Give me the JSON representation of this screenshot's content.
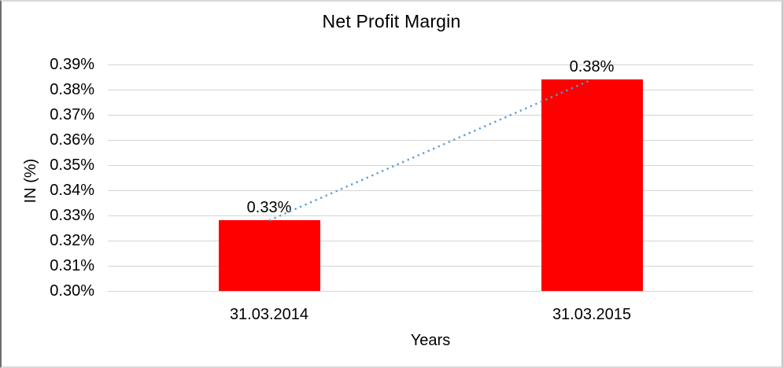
{
  "chart_data": {
    "type": "bar",
    "title": "Net Profit Margin",
    "xlabel": "Years",
    "ylabel": "IN (%)",
    "categories": [
      "31.03.2014",
      "31.03.2015"
    ],
    "values": [
      0.328,
      0.384
    ],
    "data_labels": [
      "0.33%",
      "0.38%"
    ],
    "ytick_labels": [
      "0.39%",
      "0.38%",
      "0.37%",
      "0.36%",
      "0.35%",
      "0.34%",
      "0.33%",
      "0.32%",
      "0.31%",
      "0.30%"
    ],
    "ylim": [
      0.3,
      0.39
    ],
    "ytick_step": 0.01,
    "grid": true,
    "legend": false,
    "trendline": {
      "type": "linear",
      "style": "dotted",
      "color": "#5B9BD5"
    },
    "colors": {
      "bar": "#FF0000",
      "gridline": "#D5D5D5",
      "axis_line": "#D5D5D5",
      "text": "#000000"
    }
  }
}
